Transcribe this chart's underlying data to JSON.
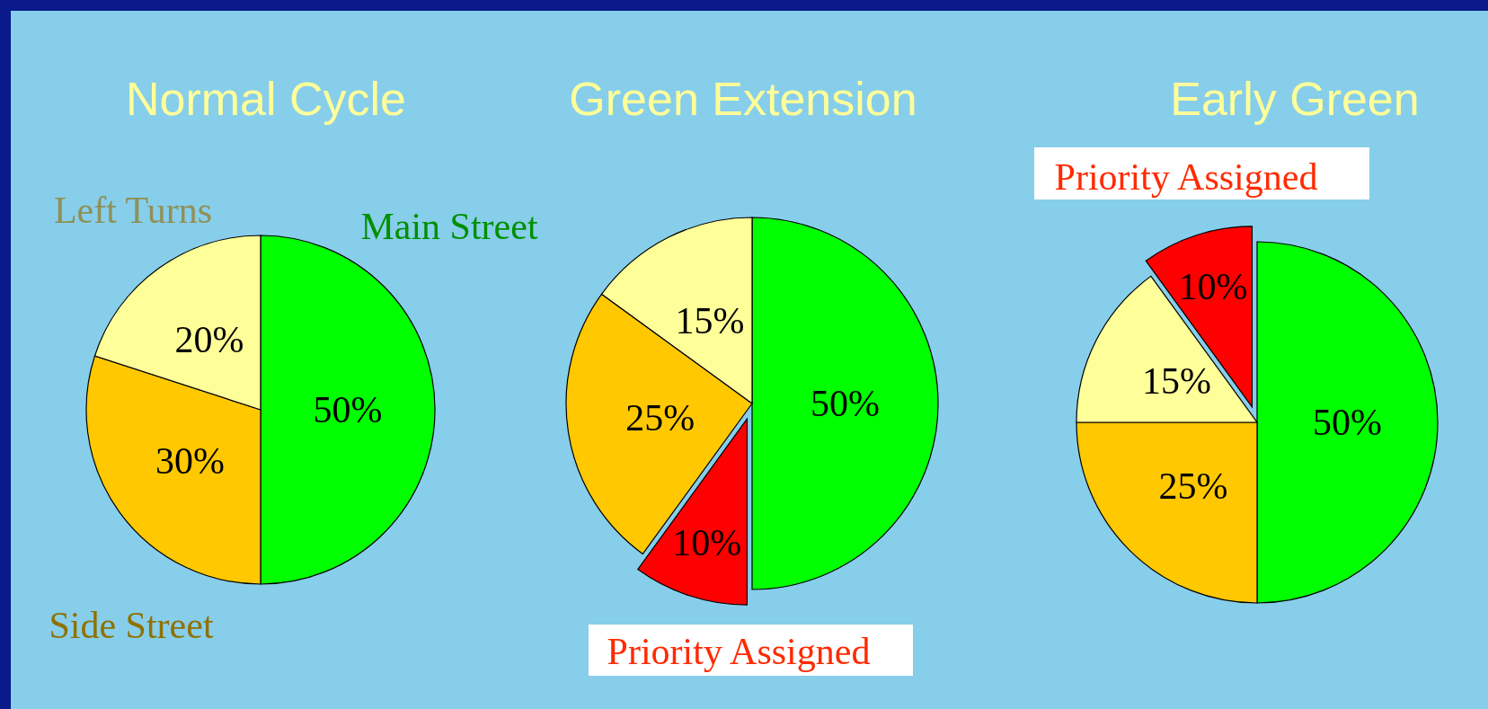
{
  "chart_data": [
    {
      "type": "pie",
      "title": "Normal Cycle",
      "categories": [
        "Main Street",
        "Side Street",
        "Left Turns"
      ],
      "values": [
        50,
        30,
        20
      ],
      "colors": [
        "#00ff00",
        "#ffc800",
        "#ffff99"
      ],
      "value_labels": [
        "50%",
        "30%",
        "20%"
      ]
    },
    {
      "type": "pie",
      "title": "Green Extension",
      "categories": [
        null,
        "Priority Assigned",
        null,
        null
      ],
      "values": [
        50,
        10,
        25,
        15
      ],
      "colors": [
        "#00ff00",
        "#ff0000",
        "#ffc800",
        "#ffff99"
      ],
      "value_labels": [
        "50%",
        "10%",
        "25%",
        "15%"
      ]
    },
    {
      "type": "pie",
      "title": "Early Green",
      "categories": [
        null,
        null,
        null,
        "Priority Assigned"
      ],
      "values": [
        50,
        25,
        15,
        10
      ],
      "colors": [
        "#00ff00",
        "#ffc800",
        "#ffff99",
        "#ff0000"
      ],
      "value_labels": [
        "50%",
        "25%",
        "15%",
        "10%"
      ]
    }
  ]
}
